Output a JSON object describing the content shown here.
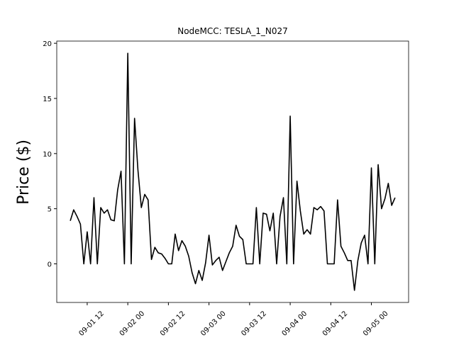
{
  "chart_data": {
    "type": "line",
    "title": "NodeMCC: TESLA_1_N027",
    "y_label": "Price ($)",
    "x": [
      "09-01 07",
      "09-01 08",
      "09-01 09",
      "09-01 10",
      "09-01 11",
      "09-01 12",
      "09-01 13",
      "09-01 14",
      "09-01 15",
      "09-01 16",
      "09-01 17",
      "09-01 18",
      "09-01 19",
      "09-01 20",
      "09-01 21",
      "09-01 22",
      "09-01 23",
      "09-02 00",
      "09-02 01",
      "09-02 02",
      "09-02 03",
      "09-02 04",
      "09-02 05",
      "09-02 06",
      "09-02 07",
      "09-02 08",
      "09-02 09",
      "09-02 10",
      "09-02 11",
      "09-02 12",
      "09-02 13",
      "09-02 14",
      "09-02 15",
      "09-02 16",
      "09-02 17",
      "09-02 18",
      "09-02 19",
      "09-02 20",
      "09-02 21",
      "09-02 22",
      "09-02 23",
      "09-03 00",
      "09-03 01",
      "09-03 02",
      "09-03 03",
      "09-03 04",
      "09-03 05",
      "09-03 06",
      "09-03 07",
      "09-03 08",
      "09-03 09",
      "09-03 10",
      "09-03 11",
      "09-03 12",
      "09-03 13",
      "09-03 14",
      "09-03 15",
      "09-03 16",
      "09-03 17",
      "09-03 18",
      "09-03 19",
      "09-03 20",
      "09-03 21",
      "09-03 22",
      "09-03 23",
      "09-04 00",
      "09-04 01",
      "09-04 02",
      "09-04 03",
      "09-04 04",
      "09-04 05",
      "09-04 06",
      "09-04 07",
      "09-04 08",
      "09-04 09",
      "09-04 10",
      "09-04 11",
      "09-04 12",
      "09-04 13",
      "09-04 14",
      "09-04 15",
      "09-04 16",
      "09-04 17",
      "09-04 18",
      "09-04 19",
      "09-04 20",
      "09-04 21",
      "09-04 22",
      "09-04 23",
      "09-05 00",
      "09-05 01",
      "09-05 02",
      "09-05 03",
      "09-05 04",
      "09-05 05",
      "09-05 06",
      "09-05 07"
    ],
    "series": [
      {
        "color": "#000000",
        "values": [
          3.9,
          4.9,
          4.3,
          3.6,
          0,
          2.9,
          0,
          6.0,
          0,
          5.1,
          4.6,
          4.9,
          4.0,
          3.9,
          6.7,
          8.4,
          0,
          19.1,
          0,
          13.2,
          8.5,
          5.1,
          6.3,
          5.8,
          0.4,
          1.5,
          1.0,
          0.9,
          0.5,
          0,
          0,
          2.7,
          1.2,
          2.1,
          1.6,
          0.7,
          -0.8,
          -1.8,
          -0.6,
          -1.5,
          0.1,
          2.6,
          -0.1,
          0.3,
          0.6,
          -0.6,
          0.2,
          1.0,
          1.6,
          3.5,
          2.5,
          2.2,
          0,
          0,
          0,
          5.1,
          0,
          4.6,
          4.5,
          3.0,
          4.6,
          0,
          4.3,
          6.0,
          0,
          13.4,
          0,
          7.5,
          4.8,
          2.7,
          3.1,
          2.7,
          5.1,
          4.9,
          5.2,
          4.8,
          0,
          0,
          0,
          5.8,
          1.6,
          1.0,
          0.3,
          0.3,
          -2.4,
          0.3,
          1.9,
          2.6,
          0,
          8.7,
          0,
          9.0,
          5.0,
          5.9,
          7.3,
          5.3,
          6.0
        ]
      }
    ],
    "xlim": [
      "09-01 03",
      "09-05 11"
    ],
    "xticks": [
      "09-01 12",
      "09-02 00",
      "09-02 12",
      "09-03 00",
      "09-03 12",
      "09-04 00",
      "09-04 12",
      "09-05 00"
    ],
    "ylim": [
      -3.5,
      20.2
    ],
    "yticks": [
      0,
      5,
      10,
      15,
      20
    ]
  }
}
